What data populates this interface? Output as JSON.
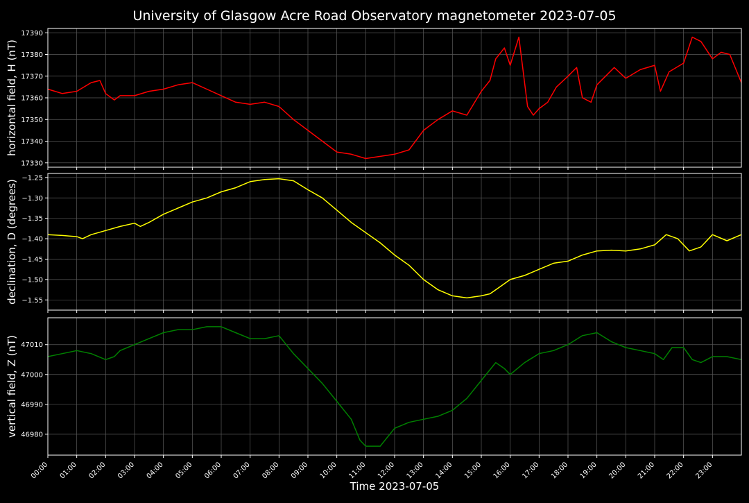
{
  "figure": {
    "title": "University of Glasgow Acre Road Observatory magnetometer 2023-07-05",
    "xlabel": "Time 2023-07-05",
    "background": "#000000",
    "foreground": "#ffffff",
    "grid_color": "#5a5a5a"
  },
  "chart_data": [
    {
      "type": "line",
      "panel": "horizontal field",
      "ylabel": "horizontal field, H (nT)",
      "color": "#ff0000",
      "xlim": [
        0,
        24
      ],
      "ylim": [
        17328,
        17392
      ],
      "yticks": [
        17330,
        17340,
        17350,
        17360,
        17370,
        17380,
        17390
      ],
      "grid": true,
      "x": [
        0,
        0.5,
        1,
        1.5,
        1.8,
        2,
        2.3,
        2.5,
        3,
        3.5,
        4,
        4.5,
        5,
        5.5,
        6,
        6.5,
        7,
        7.5,
        8,
        8.5,
        9,
        9.5,
        10,
        10.5,
        11,
        11.5,
        12,
        12.5,
        13,
        13.5,
        14,
        14.5,
        15,
        15.3,
        15.5,
        15.8,
        16,
        16.3,
        16.6,
        16.8,
        17,
        17.3,
        17.6,
        18,
        18.3,
        18.5,
        18.8,
        19,
        19.3,
        19.6,
        20,
        20.5,
        21,
        21.2,
        21.5,
        22,
        22.3,
        22.6,
        23,
        23.3,
        23.6,
        24
      ],
      "values": [
        17364,
        17362,
        17363,
        17367,
        17368,
        17362,
        17359,
        17361,
        17361,
        17363,
        17364,
        17366,
        17367,
        17364,
        17361,
        17358,
        17357,
        17358,
        17356,
        17350,
        17345,
        17340,
        17335,
        17334,
        17332,
        17333,
        17334,
        17336,
        17345,
        17350,
        17354,
        17352,
        17363,
        17368,
        17378,
        17383,
        17375,
        17388,
        17356,
        17352,
        17355,
        17358,
        17365,
        17370,
        17374,
        17360,
        17358,
        17366,
        17370,
        17374,
        17369,
        17373,
        17375,
        17363,
        17372,
        17376,
        17388,
        17386,
        17378,
        17381,
        17380,
        17367
      ]
    },
    {
      "type": "line",
      "panel": "declination",
      "ylabel": "declination, D (degrees)",
      "color": "#ffff00",
      "xlim": [
        0,
        24
      ],
      "ylim": [
        -1.575,
        -1.24
      ],
      "yticks": [
        -1.25,
        -1.3,
        -1.35,
        -1.4,
        -1.45,
        -1.5,
        -1.55
      ],
      "grid": true,
      "x": [
        0,
        0.5,
        1,
        1.2,
        1.5,
        2,
        2.5,
        3,
        3.2,
        3.5,
        4,
        4.5,
        5,
        5.5,
        6,
        6.5,
        7,
        7.5,
        8,
        8.5,
        9,
        9.5,
        10,
        10.5,
        11,
        11.5,
        12,
        12.5,
        13,
        13.5,
        14,
        14.5,
        15,
        15.3,
        15.6,
        16,
        16.5,
        17,
        17.5,
        18,
        18.5,
        19,
        19.5,
        20,
        20.5,
        21,
        21.4,
        21.8,
        22.2,
        22.6,
        23,
        23.5,
        24
      ],
      "values": [
        -1.39,
        -1.392,
        -1.395,
        -1.4,
        -1.39,
        -1.38,
        -1.37,
        -1.362,
        -1.37,
        -1.36,
        -1.34,
        -1.325,
        -1.31,
        -1.3,
        -1.285,
        -1.275,
        -1.26,
        -1.255,
        -1.253,
        -1.258,
        -1.28,
        -1.3,
        -1.33,
        -1.36,
        -1.385,
        -1.41,
        -1.44,
        -1.465,
        -1.5,
        -1.525,
        -1.54,
        -1.545,
        -1.54,
        -1.535,
        -1.52,
        -1.5,
        -1.49,
        -1.475,
        -1.46,
        -1.455,
        -1.44,
        -1.43,
        -1.428,
        -1.43,
        -1.425,
        -1.415,
        -1.39,
        -1.4,
        -1.43,
        -1.42,
        -1.39,
        -1.405,
        -1.39
      ]
    },
    {
      "type": "line",
      "panel": "vertical field",
      "ylabel": "vertical field, Z (nT)",
      "color": "#008000",
      "xlim": [
        0,
        24
      ],
      "ylim": [
        46973,
        47019
      ],
      "yticks": [
        46980,
        46990,
        47000,
        47010
      ],
      "grid": true,
      "x": [
        0,
        0.5,
        1,
        1.5,
        2,
        2.3,
        2.5,
        3,
        3.5,
        4,
        4.5,
        5,
        5.5,
        6,
        6.5,
        7,
        7.5,
        8,
        8.5,
        9,
        9.5,
        10,
        10.5,
        10.8,
        11,
        11.5,
        12,
        12.5,
        13,
        13.5,
        14,
        14.5,
        15,
        15.5,
        15.8,
        16,
        16.5,
        17,
        17.5,
        18,
        18.5,
        19,
        19.5,
        20,
        20.5,
        21,
        21.3,
        21.6,
        22,
        22.3,
        22.6,
        23,
        23.5,
        24
      ],
      "values": [
        47006,
        47007,
        47008,
        47007,
        47005,
        47006,
        47008,
        47010,
        47012,
        47014,
        47015,
        47015,
        47016,
        47016,
        47014,
        47012,
        47012,
        47013,
        47007,
        47002,
        46997,
        46991,
        46985,
        46978,
        46976,
        46976,
        46982,
        46984,
        46985,
        46986,
        46988,
        46992,
        46998,
        47004,
        47002,
        47000,
        47004,
        47007,
        47008,
        47010,
        47013,
        47014,
        47011,
        47009,
        47008,
        47007,
        47005,
        47009,
        47009,
        47005,
        47004,
        47006,
        47006,
        47005
      ]
    }
  ],
  "x_axis": {
    "tick_labels": [
      "00:00",
      "01:00",
      "02:00",
      "03:00",
      "04:00",
      "05:00",
      "06:00",
      "07:00",
      "08:00",
      "09:00",
      "10:00",
      "11:00",
      "12:00",
      "13:00",
      "14:00",
      "15:00",
      "16:00",
      "17:00",
      "18:00",
      "19:00",
      "20:00",
      "21:00",
      "22:00",
      "23:00"
    ]
  }
}
